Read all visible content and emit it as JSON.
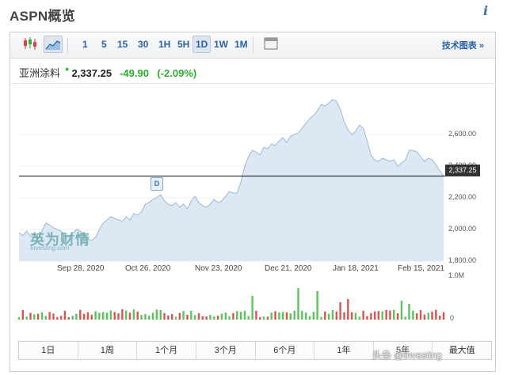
{
  "header": {
    "title": "ASPN概览",
    "info_icon": "i"
  },
  "toolbar": {
    "chart_type_icons": [
      "candlestick-icon",
      "area-chart-icon"
    ],
    "intervals": [
      "1",
      "5",
      "15",
      "30",
      "1H",
      "5H",
      "1D",
      "1W",
      "1M"
    ],
    "active_interval": "1D",
    "fullscreen_icon": "window-icon",
    "tech_chart_label": "技术图表 »"
  },
  "quote": {
    "name": "亚洲涂料",
    "price": "2,337.25",
    "change": "-49.90",
    "change_pct": "(-2.09%)",
    "change_color": "#2eae2e"
  },
  "chart_data": {
    "type": "area",
    "y_ticks": [
      "2,600.00",
      "2,400.00",
      "2,200.00",
      "2,000.00",
      "1,800.00"
    ],
    "ylim": [
      1800,
      2900
    ],
    "x_ticks": [
      "Sep 28, 2020",
      "Oct 26, 2020",
      "Nov 23, 2020",
      "Dec 21, 2020",
      "Jan 18, 2021",
      "Feb 15, 2021"
    ],
    "last_price_label": "2,337.25",
    "last_price": 2337.25,
    "event_marker": "D",
    "values": [
      1980,
      1960,
      1990,
      1955,
      1970,
      1940,
      1990,
      2040,
      2030,
      2010,
      2000,
      1990,
      1960,
      1950,
      1975,
      2000,
      1990,
      1970,
      1940,
      1930,
      1950,
      2000,
      2040,
      2060,
      2080,
      2070,
      2060,
      2050,
      2080,
      2060,
      2100,
      2090,
      2110,
      2160,
      2170,
      2190,
      2200,
      2220,
      2180,
      2160,
      2150,
      2170,
      2140,
      2160,
      2130,
      2180,
      2210,
      2170,
      2150,
      2140,
      2160,
      2190,
      2170,
      2180,
      2210,
      2240,
      2230,
      2230,
      2300,
      2400,
      2460,
      2500,
      2490,
      2470,
      2520,
      2510,
      2540,
      2530,
      2560,
      2580,
      2550,
      2590,
      2600,
      2610,
      2640,
      2670,
      2700,
      2720,
      2750,
      2790,
      2780,
      2800,
      2820,
      2810,
      2760,
      2680,
      2630,
      2600,
      2620,
      2660,
      2640,
      2560,
      2470,
      2440,
      2430,
      2450,
      2440,
      2430,
      2440,
      2400,
      2420,
      2440,
      2500,
      2500,
      2490,
      2460,
      2430,
      2450,
      2440,
      2410,
      2370,
      2337
    ],
    "volume_axis": [
      "1.0M",
      "0"
    ]
  },
  "watermark": {
    "cn": "英为财情",
    "en": "Investing.com",
    "footer": "头条 @Investing"
  },
  "range_bar": [
    "1日",
    "1周",
    "1个月",
    "3个月",
    "6个月",
    "1年",
    "5年",
    "最大值"
  ]
}
